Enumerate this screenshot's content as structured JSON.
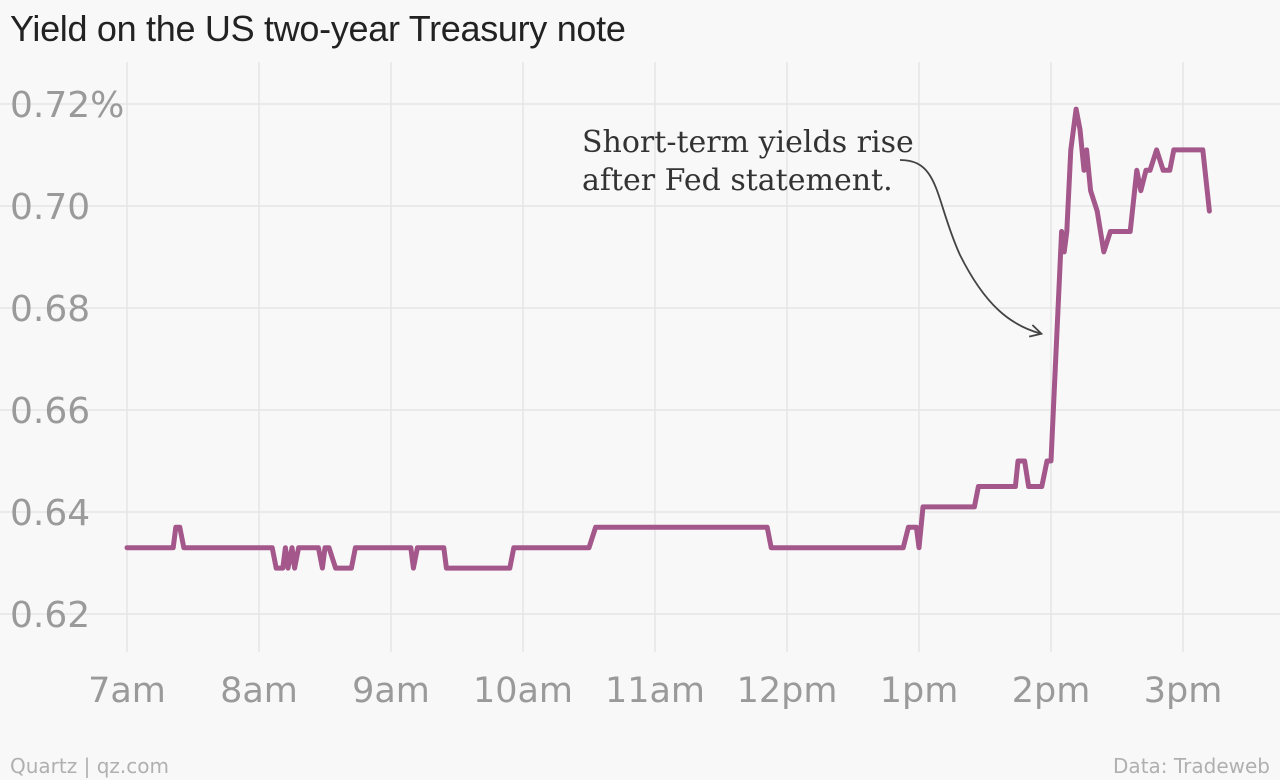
{
  "chart_data": {
    "type": "line",
    "title": "Yield on the US two-year Treasury note",
    "xlabel": "",
    "ylabel": "",
    "xlim": [
      7,
      15.5
    ],
    "ylim": [
      0.615,
      0.725
    ],
    "y_ticks": [
      0.72,
      0.7,
      0.68,
      0.66,
      0.64,
      0.62
    ],
    "y_tick_labels": [
      "0.72%",
      "0.70",
      "0.68",
      "0.66",
      "0.64",
      "0.62"
    ],
    "x_ticks": [
      7,
      8,
      9,
      10,
      11,
      12,
      13,
      14,
      15
    ],
    "x_tick_labels": [
      "7am",
      "8am",
      "9am",
      "10am",
      "11am",
      "12pm",
      "1pm",
      "2pm",
      "3pm"
    ],
    "grid": true,
    "line_color": "#a4578a",
    "series": [
      {
        "x": [
          7.0,
          7.35,
          7.37,
          7.4,
          7.43,
          7.6,
          7.8,
          8.0,
          8.1,
          8.13,
          8.18,
          8.2,
          8.22,
          8.25,
          8.27,
          8.3,
          8.33,
          8.45,
          8.48,
          8.5,
          8.53,
          8.58,
          8.7,
          8.73,
          8.9,
          9.0,
          9.15,
          9.17,
          9.2,
          9.22,
          9.4,
          9.42,
          9.6,
          9.8,
          9.9,
          9.93,
          10.2,
          10.5,
          10.55,
          10.6,
          11.0,
          11.5,
          11.85,
          11.88,
          12.5,
          12.88,
          12.92,
          12.98,
          13.0,
          13.03,
          13.4,
          13.42,
          13.45,
          13.7,
          13.73,
          13.75,
          13.8,
          13.83,
          13.87,
          13.93,
          13.97,
          14.0,
          14.08,
          14.1,
          14.12,
          14.15,
          14.19,
          14.22,
          14.25,
          14.27,
          14.3,
          14.35,
          14.4,
          14.45,
          14.6,
          14.65,
          14.68,
          14.72,
          14.75,
          14.8,
          14.85,
          14.87,
          14.9,
          14.93,
          15.0,
          15.05,
          15.08,
          15.15,
          15.2
        ],
        "y": [
          0.633,
          0.633,
          0.637,
          0.637,
          0.633,
          0.633,
          0.633,
          0.633,
          0.633,
          0.629,
          0.629,
          0.633,
          0.629,
          0.633,
          0.629,
          0.633,
          0.633,
          0.633,
          0.629,
          0.633,
          0.633,
          0.629,
          0.629,
          0.633,
          0.633,
          0.633,
          0.633,
          0.629,
          0.633,
          0.633,
          0.633,
          0.629,
          0.629,
          0.629,
          0.629,
          0.633,
          0.633,
          0.633,
          0.637,
          0.637,
          0.637,
          0.637,
          0.637,
          0.633,
          0.633,
          0.633,
          0.637,
          0.637,
          0.633,
          0.641,
          0.641,
          0.641,
          0.645,
          0.645,
          0.645,
          0.65,
          0.65,
          0.645,
          0.645,
          0.645,
          0.65,
          0.65,
          0.695,
          0.691,
          0.695,
          0.711,
          0.719,
          0.715,
          0.707,
          0.711,
          0.703,
          0.699,
          0.691,
          0.695,
          0.695,
          0.707,
          0.703,
          0.707,
          0.707,
          0.711,
          0.707,
          0.707,
          0.707,
          0.711,
          0.711,
          0.711,
          0.711,
          0.711,
          0.699
        ]
      }
    ],
    "annotations": [
      {
        "text_lines": [
          "Short-term yields rise",
          "after Fed statement."
        ],
        "points_to": [
          13.92,
          0.675
        ]
      }
    ]
  },
  "footer": {
    "source_left": "Quartz | qz.com",
    "source_right": "Data: Tradeweb"
  }
}
